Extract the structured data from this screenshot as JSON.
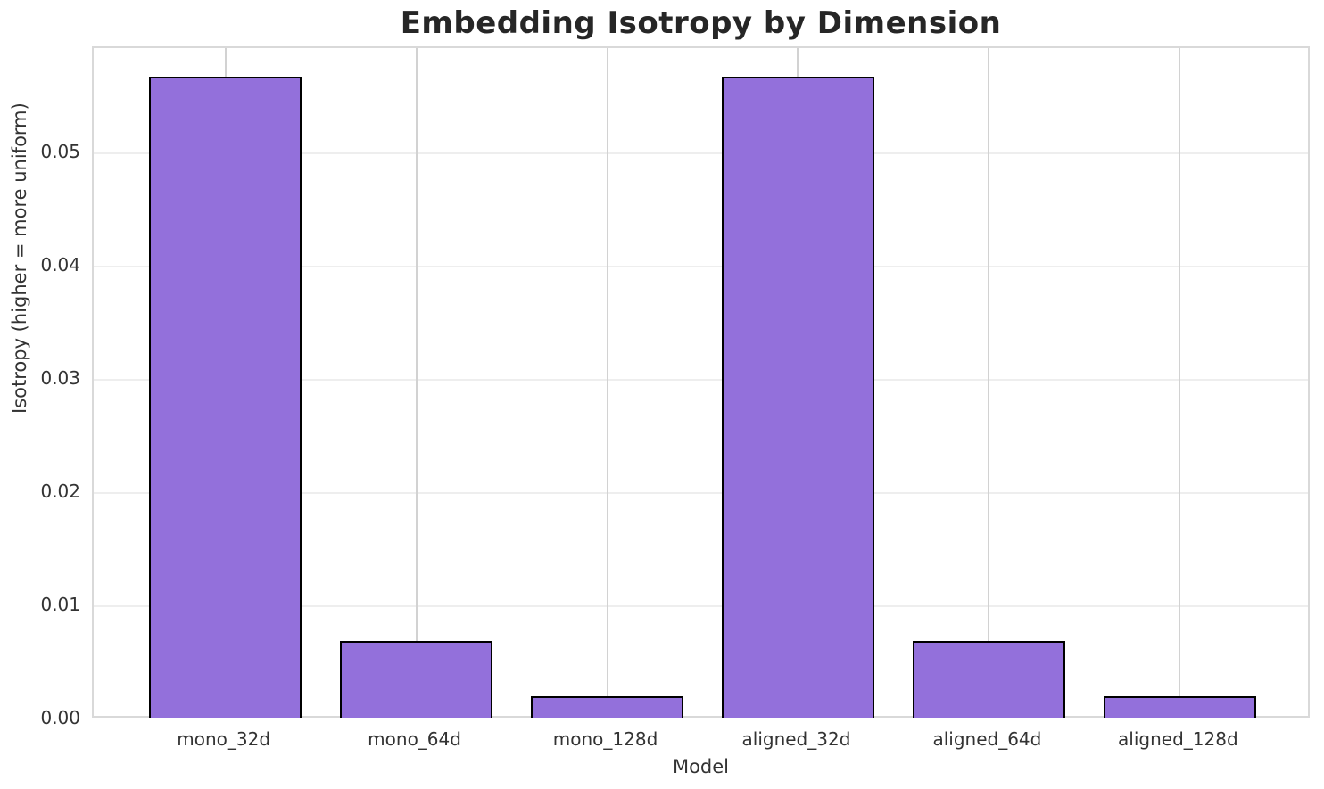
{
  "chart_data": {
    "type": "bar",
    "title": "Embedding Isotropy by Dimension",
    "xlabel": "Model",
    "ylabel": "Isotropy (higher = more uniform)",
    "categories": [
      "mono_32d",
      "mono_64d",
      "mono_128d",
      "aligned_32d",
      "aligned_64d",
      "aligned_128d"
    ],
    "values": [
      0.0565,
      0.0066,
      0.0017,
      0.0565,
      0.0066,
      0.0017
    ],
    "ytick_values": [
      0.0,
      0.01,
      0.02,
      0.03,
      0.04,
      0.05
    ],
    "ytick_labels": [
      "0.00",
      "0.01",
      "0.02",
      "0.03",
      "0.04",
      "0.05"
    ],
    "ylim": [
      0,
      0.0593
    ],
    "xlim": [
      -0.69,
      5.69
    ],
    "bar_width": 0.8,
    "bar_color": "#9370DB",
    "bar_edge_color": "#000000",
    "grid": true,
    "legend_position": "none"
  }
}
